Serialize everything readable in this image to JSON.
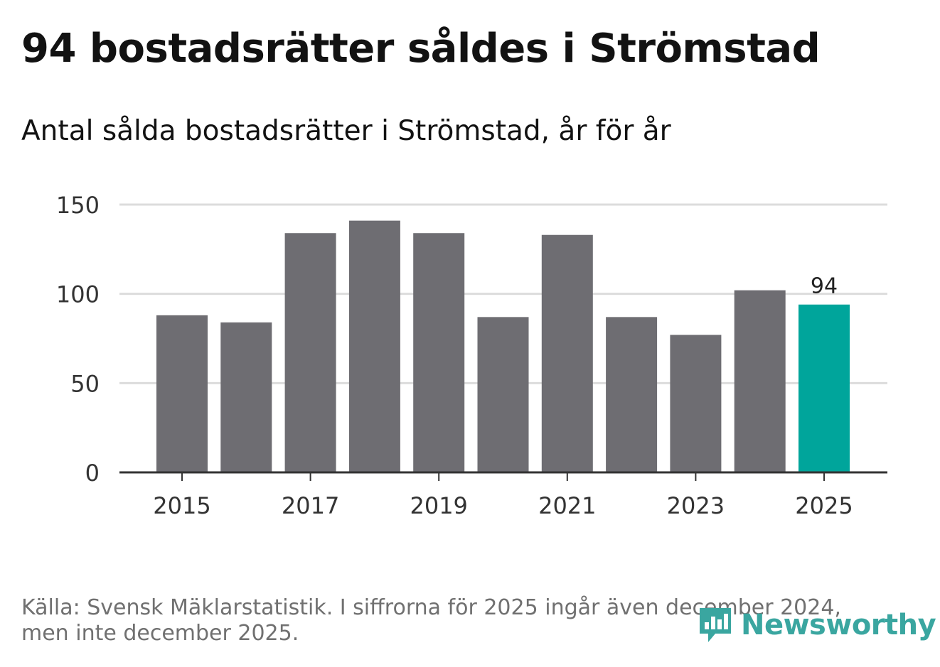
{
  "title": "94 bostadsrätter såldes i Strömstad",
  "subtitle": "Antal sålda bostadsrätter i Strömstad, år för år",
  "footer": {
    "line1": "Källa: Svensk Mäklarstatistik. I siffrorna för 2025 ingår även december 2024,",
    "line2": "men inte december 2025."
  },
  "logo": {
    "text": "Newsworthy"
  },
  "colors": {
    "bar": "#6e6d72",
    "highlight": "#00a59b",
    "grid": "#dcdcdc",
    "axis": "#333333",
    "logo": "#3aa6a0"
  },
  "chart_data": {
    "type": "bar",
    "title": "94 bostadsrätter såldes i Strömstad",
    "subtitle": "Antal sålda bostadsrätter i Strömstad, år för år",
    "xlabel": "",
    "ylabel": "",
    "categories": [
      "2015",
      "2016",
      "2017",
      "2018",
      "2019",
      "2020",
      "2021",
      "2022",
      "2023",
      "2024",
      "2025"
    ],
    "values": [
      88,
      84,
      134,
      141,
      134,
      87,
      133,
      87,
      77,
      102,
      94
    ],
    "highlight_index": 10,
    "data_labels": [
      {
        "index": 10,
        "text": "94"
      }
    ],
    "x_tick_labels": [
      "2015",
      "2017",
      "2019",
      "2021",
      "2023",
      "2025"
    ],
    "y_ticks": [
      0,
      50,
      100,
      150
    ],
    "ylim": [
      0,
      150
    ],
    "grid": true,
    "legend": "none"
  }
}
